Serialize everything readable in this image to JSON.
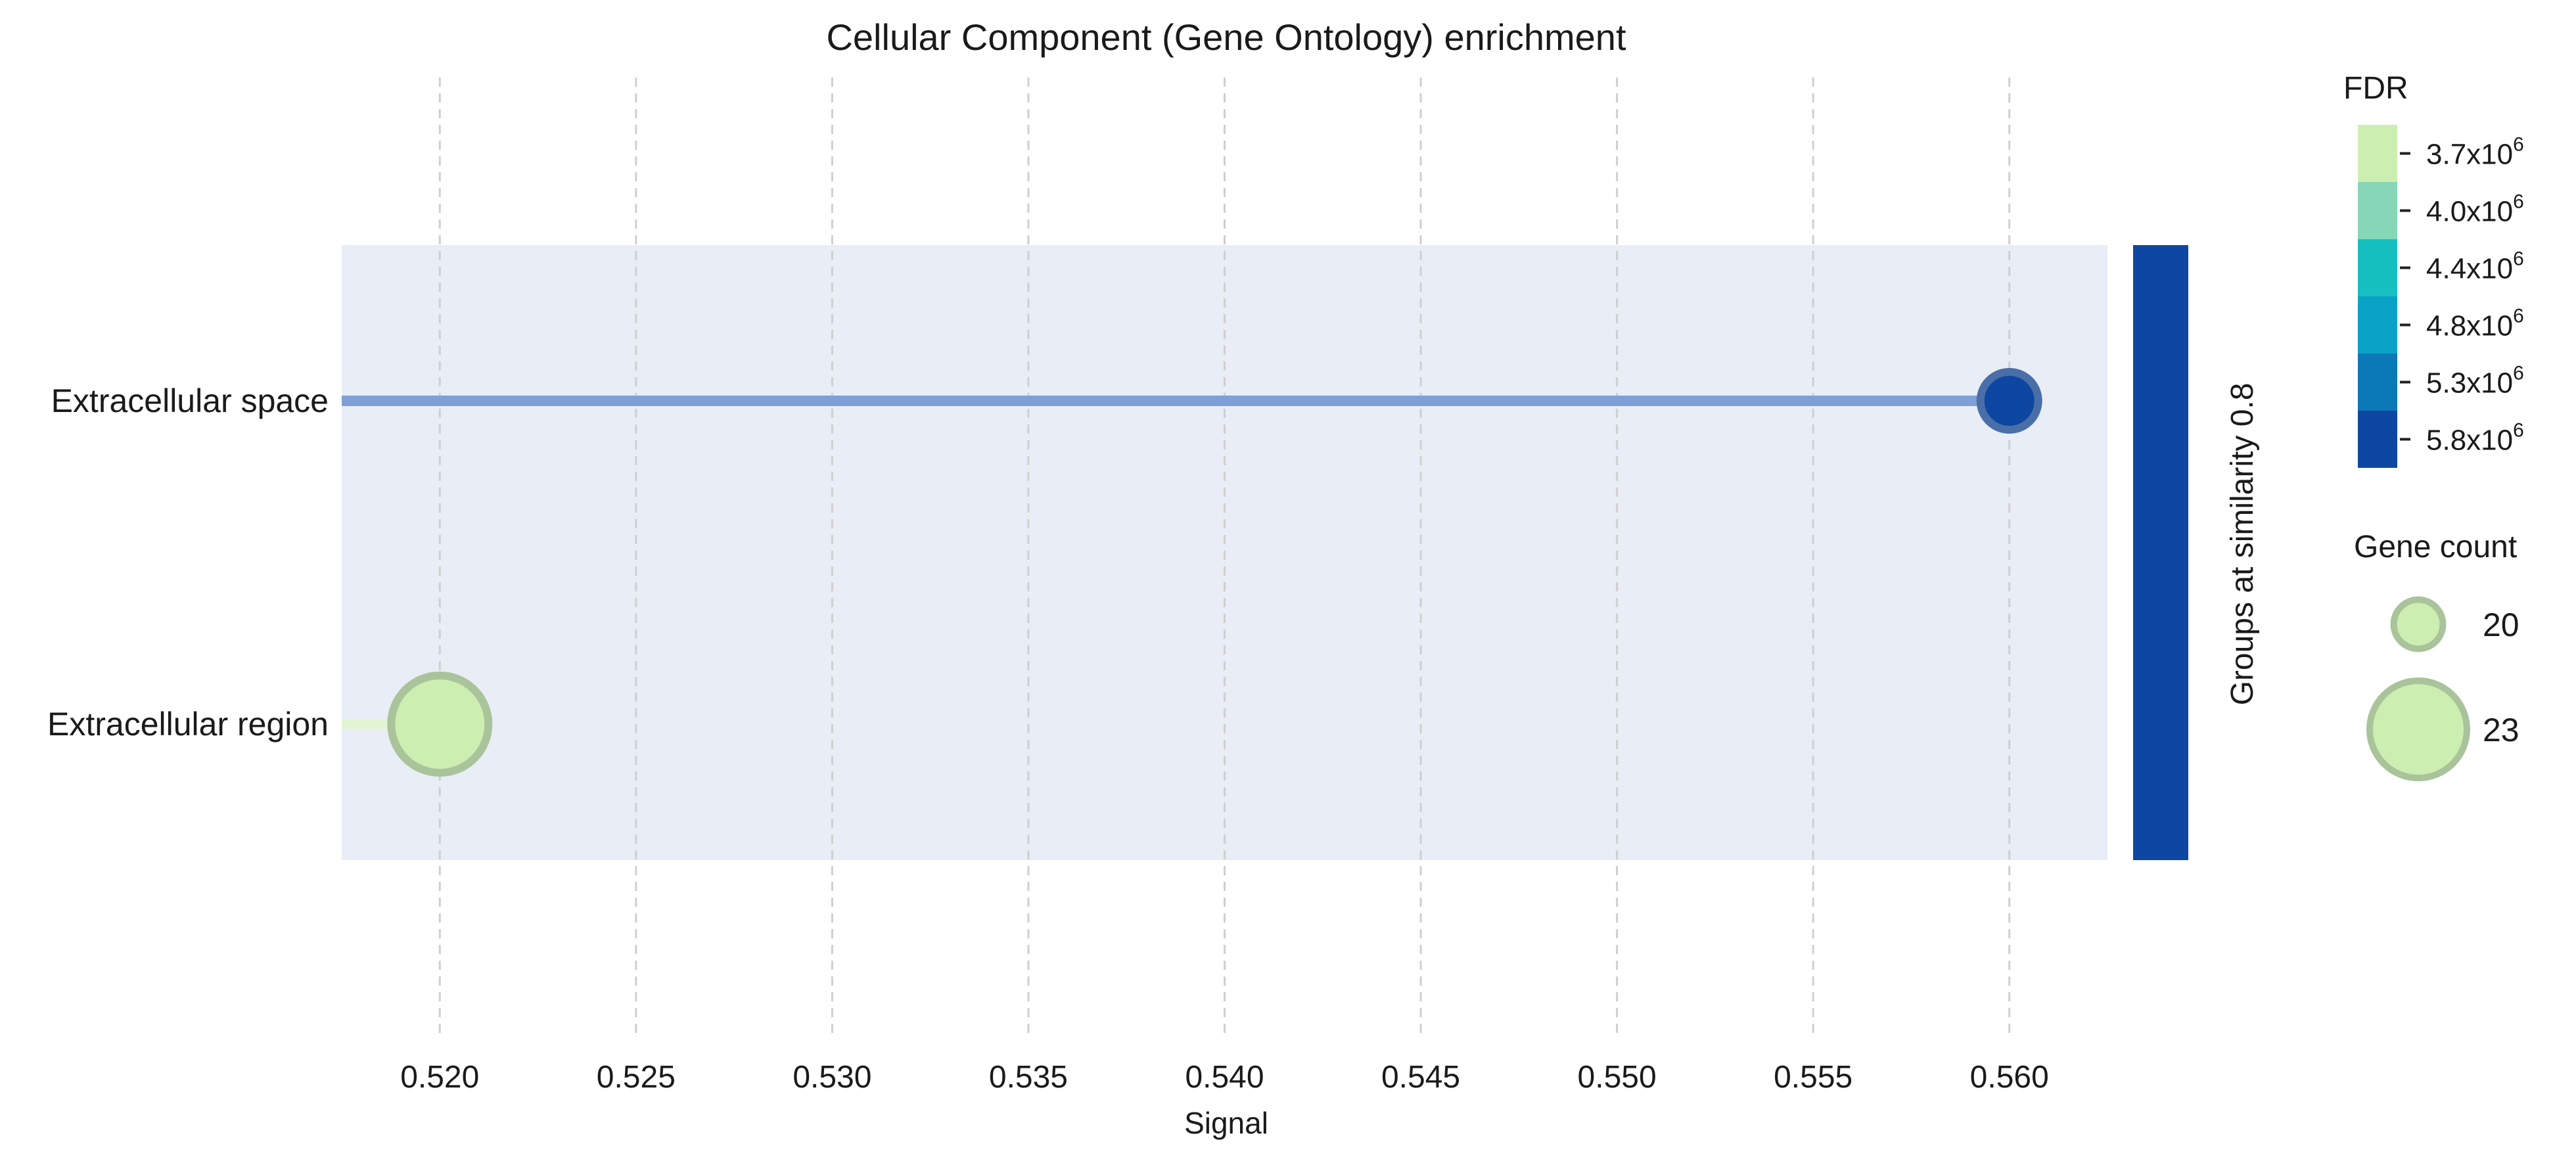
{
  "chart_data": {
    "type": "scatter",
    "title": "Cellular Component (Gene Ontology) enrichment",
    "xlabel": "Signal",
    "ylabel": "",
    "xlim": [
      0.5175,
      0.5625
    ],
    "x_ticks": [
      "0.520",
      "0.525",
      "0.530",
      "0.535",
      "0.540",
      "0.545",
      "0.550",
      "0.555",
      "0.560"
    ],
    "x_tick_values": [
      0.52,
      0.525,
      0.53,
      0.535,
      0.54,
      0.545,
      0.55,
      0.555,
      0.56
    ],
    "grid": "vertical dashed",
    "categories": [
      "Extracellular space",
      "Extracellular region"
    ],
    "points": [
      {
        "term": "Extracellular space",
        "signal": 0.56,
        "gene_count": 20,
        "fdr_level": 5,
        "color": "#0d47a1"
      },
      {
        "term": "Extracellular region",
        "signal": 0.52,
        "gene_count": 23,
        "fdr_level": 0,
        "color": "#cdeeb1"
      }
    ],
    "group_band_label": "Groups at similarity 0.8",
    "group_band_color": "#0d47a1",
    "background_color": "#e8edf6",
    "stem_colors": [
      "#7fa0d6",
      "#e4f5d6"
    ],
    "fdr_legend": {
      "title": "FDR",
      "levels": [
        {
          "label": "3.7x10",
          "exp": "6",
          "color": "#cdeeb1"
        },
        {
          "label": "4.0x10",
          "exp": "6",
          "color": "#86d6b8"
        },
        {
          "label": "4.4x10",
          "exp": "6",
          "color": "#16c0c0"
        },
        {
          "label": "4.8x10",
          "exp": "6",
          "color": "#0aa3c7"
        },
        {
          "label": "5.3x10",
          "exp": "6",
          "color": "#0b78b8"
        },
        {
          "label": "5.8x10",
          "exp": "6",
          "color": "#0d47a1"
        }
      ]
    },
    "size_legend": {
      "title": "Gene count",
      "items": [
        {
          "label": "20",
          "count": 20
        },
        {
          "label": "23",
          "count": 23
        }
      ]
    }
  }
}
